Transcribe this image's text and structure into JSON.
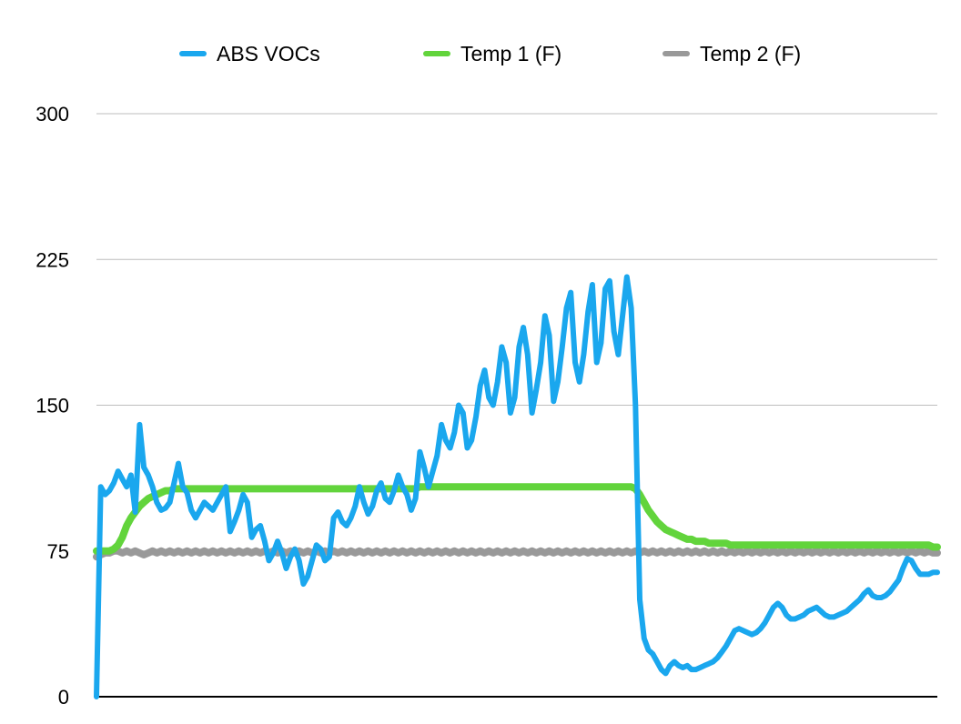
{
  "chart_data": {
    "type": "line",
    "title": "",
    "xlabel": "",
    "ylabel": "",
    "ylim": [
      0,
      300
    ],
    "yticks": [
      0,
      75,
      150,
      225,
      300
    ],
    "grid": true,
    "legend_position": "top",
    "series": [
      {
        "name": "ABS VOCs",
        "color": "#1aa7ee",
        "values": [
          0,
          108,
          104,
          106,
          110,
          116,
          112,
          108,
          114,
          95,
          140,
          118,
          114,
          108,
          100,
          96,
          97,
          100,
          110,
          120,
          108,
          105,
          96,
          92,
          96,
          100,
          98,
          96,
          100,
          104,
          108,
          85,
          90,
          96,
          104,
          100,
          82,
          86,
          88,
          80,
          70,
          74,
          80,
          74,
          66,
          72,
          76,
          70,
          58,
          62,
          70,
          78,
          76,
          70,
          72,
          92,
          95,
          90,
          88,
          92,
          98,
          108,
          100,
          94,
          98,
          106,
          110,
          102,
          100,
          106,
          114,
          108,
          104,
          96,
          102,
          126,
          118,
          108,
          116,
          124,
          140,
          132,
          128,
          136,
          150,
          146,
          128,
          132,
          144,
          160,
          168,
          154,
          150,
          162,
          180,
          172,
          146,
          154,
          180,
          190,
          176,
          146,
          158,
          172,
          196,
          186,
          152,
          162,
          180,
          200,
          208,
          172,
          162,
          176,
          198,
          212,
          172,
          182,
          210,
          214,
          188,
          176,
          196,
          216,
          200,
          150,
          50,
          30,
          24,
          22,
          18,
          14,
          12,
          16,
          18,
          16,
          15,
          16,
          14,
          14,
          15,
          16,
          17,
          18,
          20,
          23,
          26,
          30,
          34,
          35,
          34,
          33,
          32,
          33,
          35,
          38,
          42,
          46,
          48,
          46,
          42,
          40,
          40,
          41,
          42,
          44,
          45,
          46,
          44,
          42,
          41,
          41,
          42,
          43,
          44,
          46,
          48,
          50,
          53,
          55,
          52,
          51,
          51,
          52,
          54,
          57,
          60,
          66,
          71,
          70,
          66,
          63,
          63,
          63,
          64,
          64
        ]
      },
      {
        "name": "Temp 1 (F)",
        "color": "#62d43c",
        "values": [
          75,
          75,
          75,
          75,
          76,
          78,
          82,
          88,
          92,
          95,
          98,
          100,
          102,
          103,
          104,
          105,
          106,
          106,
          107,
          107,
          107,
          107,
          107,
          107,
          107,
          107,
          107,
          107,
          107,
          107,
          107,
          107,
          107,
          107,
          107,
          107,
          107,
          107,
          107,
          107,
          107,
          107,
          107,
          107,
          107,
          107,
          107,
          107,
          107,
          107,
          107,
          107,
          107,
          107,
          107,
          107,
          107,
          107,
          107,
          107,
          107,
          107,
          107,
          107,
          107,
          107,
          107,
          107,
          107,
          107,
          107,
          107,
          107,
          107,
          107,
          108,
          108,
          108,
          108,
          108,
          108,
          108,
          108,
          108,
          108,
          108,
          108,
          108,
          108,
          108,
          108,
          108,
          108,
          108,
          108,
          108,
          108,
          108,
          108,
          108,
          108,
          108,
          108,
          108,
          108,
          108,
          108,
          108,
          108,
          108,
          108,
          108,
          108,
          108,
          108,
          108,
          108,
          108,
          108,
          108,
          108,
          108,
          108,
          108,
          108,
          107,
          104,
          100,
          96,
          93,
          90,
          88,
          86,
          85,
          84,
          83,
          82,
          81,
          81,
          80,
          80,
          80,
          79,
          79,
          79,
          79,
          79,
          78,
          78,
          78,
          78,
          78,
          78,
          78,
          78,
          78,
          78,
          78,
          78,
          78,
          78,
          78,
          78,
          78,
          78,
          78,
          78,
          78,
          78,
          78,
          78,
          78,
          78,
          78,
          78,
          78,
          78,
          78,
          78,
          78,
          78,
          78,
          78,
          78,
          78,
          78,
          78,
          78,
          78,
          78,
          78,
          78,
          78,
          78,
          77,
          77
        ]
      },
      {
        "name": "Temp 2 (F)",
        "color": "#999999",
        "values": [
          72,
          73,
          74,
          74,
          75,
          75,
          74,
          75,
          74,
          75,
          74,
          73,
          74,
          75,
          74,
          75,
          74,
          75,
          74,
          75,
          74,
          75,
          74,
          75,
          74,
          75,
          74,
          75,
          74,
          75,
          74,
          75,
          74,
          75,
          74,
          75,
          74,
          75,
          74,
          75,
          74,
          75,
          74,
          75,
          74,
          75,
          74,
          75,
          74,
          75,
          74,
          75,
          74,
          75,
          74,
          75,
          74,
          75,
          74,
          75,
          74,
          75,
          74,
          75,
          74,
          75,
          74,
          75,
          74,
          75,
          74,
          75,
          74,
          75,
          74,
          75,
          74,
          75,
          74,
          75,
          74,
          75,
          74,
          75,
          74,
          75,
          74,
          75,
          74,
          75,
          74,
          75,
          74,
          75,
          74,
          75,
          74,
          75,
          74,
          75,
          74,
          75,
          74,
          75,
          74,
          75,
          74,
          75,
          74,
          75,
          74,
          75,
          74,
          75,
          74,
          75,
          74,
          75,
          74,
          75,
          74,
          75,
          74,
          75,
          74,
          75,
          74,
          75,
          74,
          75,
          74,
          75,
          74,
          75,
          74,
          75,
          74,
          75,
          74,
          75,
          74,
          75,
          74,
          75,
          74,
          75,
          74,
          75,
          74,
          75,
          74,
          75,
          74,
          75,
          74,
          75,
          74,
          75,
          74,
          75,
          74,
          75,
          74,
          75,
          74,
          75,
          74,
          75,
          74,
          75,
          74,
          75,
          74,
          75,
          74,
          75,
          74,
          75,
          74,
          75,
          74,
          75,
          74,
          75,
          74,
          75,
          74,
          75,
          74,
          75,
          74,
          75,
          74,
          75,
          74,
          74
        ]
      }
    ]
  }
}
